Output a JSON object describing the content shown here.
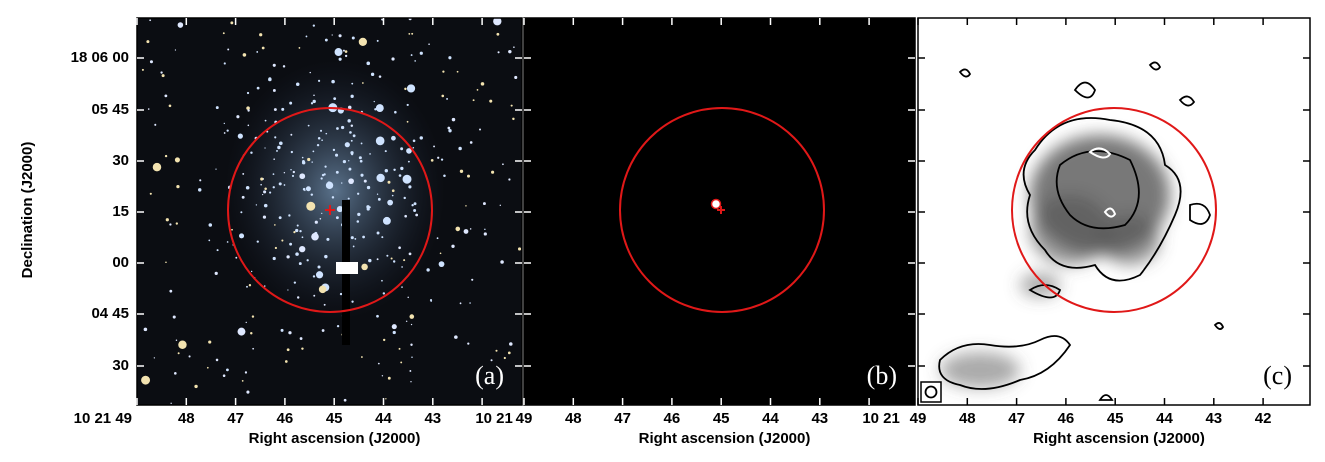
{
  "y_axis": {
    "title": "Declination (J2000)",
    "tick_labels": [
      "18 06 00",
      "05 45",
      "30",
      "15",
      "00",
      "04 45",
      "30"
    ]
  },
  "panels": [
    {
      "label": "(a)",
      "x_axis_title": "Right ascension (J2000)",
      "x_tick_labels": [
        "10 21 49",
        "48",
        "47",
        "46",
        "45",
        "44",
        "43",
        "10 21"
      ]
    },
    {
      "label": "(b)",
      "x_axis_title": "Right ascension (J2000)",
      "x_tick_labels": [
        "49",
        "48",
        "47",
        "46",
        "45",
        "44",
        "43",
        "10 21"
      ]
    },
    {
      "label": "(c)",
      "x_axis_title": "Right ascension (J2000)",
      "x_tick_labels": [
        "49",
        "48",
        "47",
        "46",
        "45",
        "44",
        "43",
        "42"
      ]
    }
  ]
}
